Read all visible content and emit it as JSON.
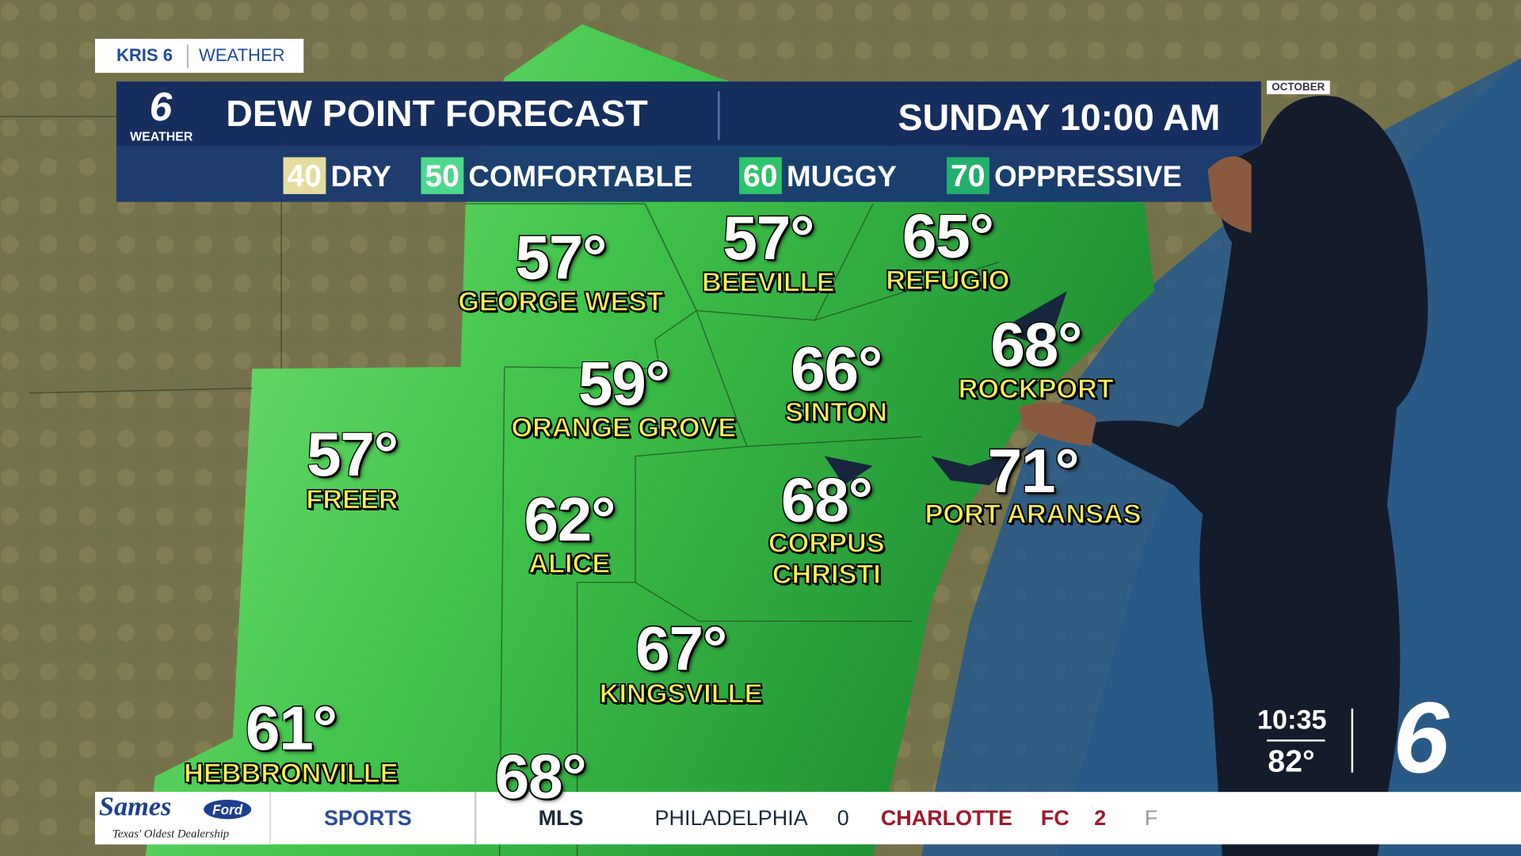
{
  "bug": {
    "station": "KRIS 6",
    "section": "WEATHER"
  },
  "header": {
    "logo_number": "6",
    "logo_text": "WEATHER",
    "title": "DEW POINT FORECAST",
    "time": "SUNDAY 10:00 AM"
  },
  "legend": [
    {
      "number": "40",
      "label": "DRY"
    },
    {
      "number": "50",
      "label": "COMFORTABLE"
    },
    {
      "number": "60",
      "label": "MUGGY"
    },
    {
      "number": "70",
      "label": "OPPRESSIVE"
    }
  ],
  "map_tag": "OCTOBER",
  "cities": [
    {
      "temp": "57°",
      "name": "GEORGE WEST"
    },
    {
      "temp": "57°",
      "name": "BEEVILLE"
    },
    {
      "temp": "65°",
      "name": "REFUGIO"
    },
    {
      "temp": "59°",
      "name": "ORANGE GROVE"
    },
    {
      "temp": "66°",
      "name": "SINTON"
    },
    {
      "temp": "68°",
      "name": "ROCKPORT"
    },
    {
      "temp": "57°",
      "name": "FREER"
    },
    {
      "temp": "62°",
      "name": "ALICE"
    },
    {
      "temp": "68°",
      "name": "CORPUS CHRISTI"
    },
    {
      "temp": "71°",
      "name": "PORT ARANSAS"
    },
    {
      "temp": "67°",
      "name": "KINGSVILLE"
    },
    {
      "temp": "61°",
      "name": "HEBBRONVILLE"
    },
    {
      "temp": "68°"
    }
  ],
  "clock": {
    "time": "10:35",
    "temperature": "82°",
    "logo": "6"
  },
  "ticker": {
    "sponsor": "Sames",
    "sponsor_brand": "Ford",
    "sponsor_tagline": "Texas' Oldest Dealership",
    "section": "SPORTS",
    "league": "MLS",
    "home": "PHILADELPHIA",
    "home_score": "0",
    "away": "CHARLOTTE",
    "away_suffix": "FC",
    "away_score": "2",
    "status": "F"
  }
}
